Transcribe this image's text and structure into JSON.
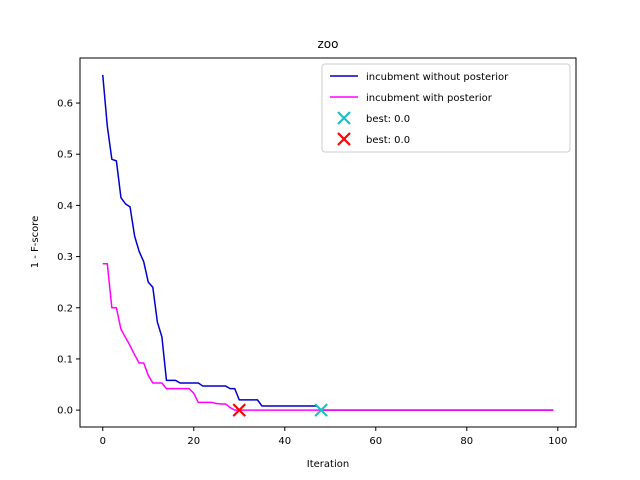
{
  "chart_data": {
    "type": "line",
    "title": "zoo",
    "xlabel": "Iteration",
    "ylabel": "1 - F-score",
    "xlim": [
      -5,
      104
    ],
    "ylim": [
      -0.033,
      0.688
    ],
    "xticks": [
      0,
      20,
      40,
      60,
      80,
      100
    ],
    "yticks": [
      0.0,
      0.1,
      0.2,
      0.3,
      0.4,
      0.5,
      0.6
    ],
    "ytick_labels": [
      "0.0",
      "0.1",
      "0.2",
      "0.3",
      "0.4",
      "0.5",
      "0.6"
    ],
    "grid": false,
    "legend_position": "top-right",
    "series": [
      {
        "name": "incubment without posterior",
        "color": "#0000cc",
        "x": [
          0,
          1,
          2,
          3,
          4,
          5,
          6,
          7,
          8,
          9,
          10,
          11,
          12,
          13,
          14,
          15,
          16,
          17,
          18,
          19,
          20,
          21,
          22,
          23,
          24,
          25,
          26,
          27,
          28,
          29,
          30,
          31,
          32,
          33,
          34,
          35,
          36,
          37,
          38,
          39,
          40,
          41,
          42,
          43,
          44,
          45,
          46,
          47,
          48,
          49,
          50,
          99
        ],
        "values": [
          0.655,
          0.555,
          0.49,
          0.487,
          0.415,
          0.403,
          0.397,
          0.34,
          0.31,
          0.29,
          0.25,
          0.24,
          0.172,
          0.143,
          0.058,
          0.058,
          0.058,
          0.053,
          0.053,
          0.053,
          0.053,
          0.053,
          0.047,
          0.047,
          0.047,
          0.047,
          0.047,
          0.047,
          0.042,
          0.042,
          0.02,
          0.02,
          0.02,
          0.02,
          0.02,
          0.008,
          0.008,
          0.008,
          0.008,
          0.008,
          0.008,
          0.008,
          0.008,
          0.008,
          0.008,
          0.008,
          0.008,
          0.008,
          0.0,
          0.0,
          0.0,
          0.0
        ]
      },
      {
        "name": "incubment with posterior",
        "color": "#ff00ff",
        "x": [
          0,
          1,
          2,
          3,
          4,
          5,
          6,
          7,
          8,
          9,
          10,
          11,
          12,
          13,
          14,
          15,
          16,
          17,
          18,
          19,
          20,
          21,
          22,
          23,
          24,
          25,
          26,
          27,
          28,
          29,
          30,
          99
        ],
        "values": [
          0.286,
          0.286,
          0.2,
          0.2,
          0.158,
          0.142,
          0.126,
          0.108,
          0.092,
          0.092,
          0.068,
          0.053,
          0.053,
          0.053,
          0.042,
          0.042,
          0.042,
          0.042,
          0.042,
          0.042,
          0.033,
          0.015,
          0.015,
          0.015,
          0.015,
          0.013,
          0.012,
          0.012,
          0.005,
          0.0,
          0.0,
          0.0
        ]
      }
    ],
    "markers": [
      {
        "name": "best: 0.0",
        "color": "#1ebfbf",
        "x": 48,
        "y": 0.0,
        "marker": "x"
      },
      {
        "name": "best: 0.0",
        "color": "#ff0000",
        "x": 30,
        "y": 0.0,
        "marker": "x"
      }
    ]
  }
}
